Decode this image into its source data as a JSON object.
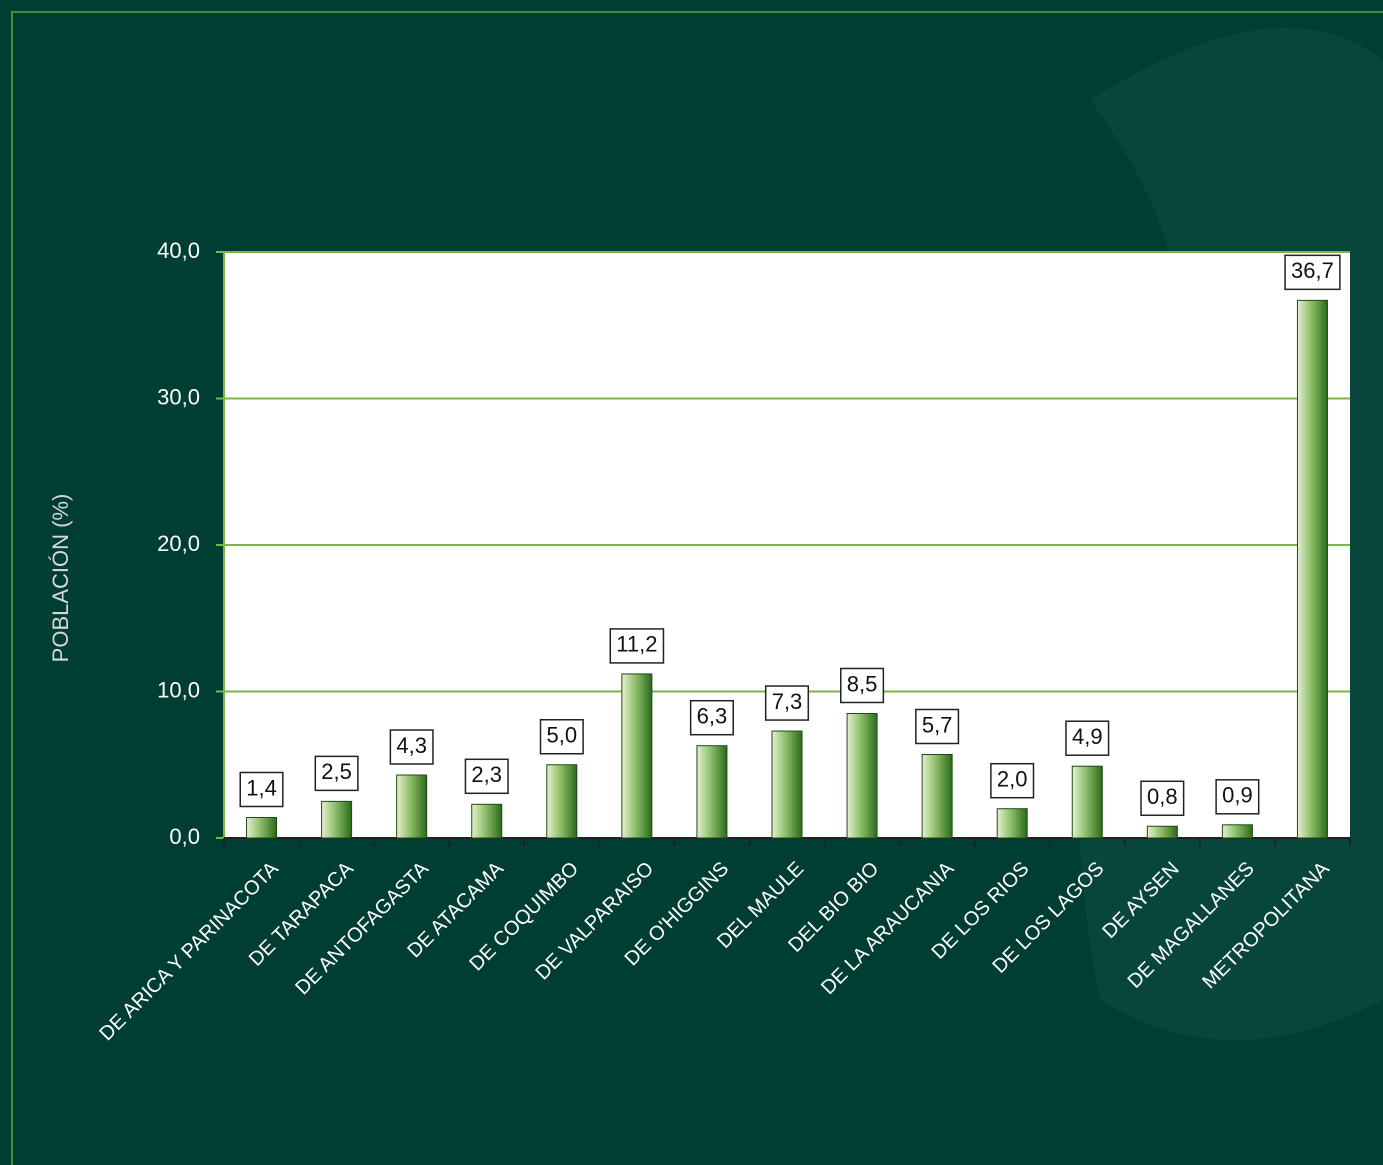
{
  "chart_data": {
    "type": "bar",
    "y_label": "POBLACIÓN  (%)",
    "categories": [
      "DE ARICA Y PARINACOTA",
      "DE TARAPACA",
      "DE ANTOFAGASTA",
      "DE ATACAMA",
      "DE COQUIMBO",
      "DE VALPARAISO",
      "DE O'HIGGINS",
      "DEL MAULE",
      "DEL BIO BIO",
      "DE LA ARAUCANIA",
      "DE LOS RIOS",
      "DE LOS LAGOS",
      "DE AYSEN",
      "DE MAGALLANES",
      "METROPOLITANA"
    ],
    "values": [
      1.4,
      2.5,
      4.3,
      2.3,
      5.0,
      11.2,
      6.3,
      7.3,
      8.5,
      5.7,
      2.0,
      4.9,
      0.8,
      0.9,
      36.7
    ],
    "value_labels": [
      "1,4",
      "2,5",
      "4,3",
      "2,3",
      "5,0",
      "11,2",
      "6,3",
      "7,3",
      "8,5",
      "5,7",
      "2,0",
      "4,9",
      "0,8",
      "0,9",
      "36,7"
    ],
    "color": "#3d7a2a",
    "ylim": [
      0,
      40
    ],
    "yticks": [
      {
        "value": 0,
        "label": "0,0"
      },
      {
        "value": 10,
        "label": "10,0"
      },
      {
        "value": 20,
        "label": "20,0"
      },
      {
        "value": 30,
        "label": "30,0"
      },
      {
        "value": 40,
        "label": "40,0"
      }
    ],
    "grid": true
  }
}
